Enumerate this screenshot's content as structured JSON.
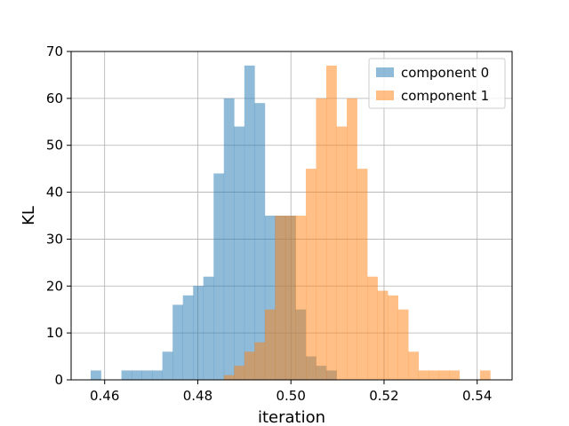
{
  "chart_data": {
    "type": "histogram",
    "title": "",
    "xlabel": "iteration",
    "ylabel": "KL",
    "xlim": [
      0.4528,
      0.5475
    ],
    "ylim": [
      0,
      70
    ],
    "xticks": [
      0.46,
      0.48,
      0.5,
      0.52,
      0.54
    ],
    "xtick_labels": [
      "0.46",
      "0.48",
      "0.50",
      "0.52",
      "0.54"
    ],
    "yticks": [
      0,
      10,
      20,
      30,
      40,
      50,
      60,
      70
    ],
    "ytick_labels": [
      "0",
      "10",
      "20",
      "30",
      "40",
      "50",
      "60",
      "70"
    ],
    "grid": true,
    "legend_position": "top-right",
    "series": [
      {
        "name": "component 0",
        "color": "#1f77b4",
        "bin_edges": [
          0.457,
          0.4592,
          0.4614,
          0.4636,
          0.4658,
          0.468,
          0.4702,
          0.4724,
          0.4746,
          0.4768,
          0.479,
          0.4812,
          0.4834,
          0.4856,
          0.4878,
          0.49,
          0.4922,
          0.4944,
          0.4966,
          0.4988,
          0.501,
          0.5032,
          0.5054,
          0.5076,
          0.5098,
          0.512,
          0.5142
        ],
        "counts": [
          2,
          0,
          0,
          2,
          2,
          2,
          2,
          6,
          16,
          18,
          20,
          22,
          44,
          60,
          54,
          67,
          59,
          35,
          35,
          35,
          15,
          5,
          3,
          2,
          0,
          0
        ]
      },
      {
        "name": "component 1",
        "color": "#ff7f0e",
        "bin_edges": [
          0.4856,
          0.4878,
          0.49,
          0.4922,
          0.4944,
          0.4966,
          0.4988,
          0.501,
          0.5032,
          0.5054,
          0.5076,
          0.5098,
          0.512,
          0.5142,
          0.5164,
          0.5186,
          0.5208,
          0.523,
          0.5252,
          0.5274,
          0.5296,
          0.5318,
          0.534,
          0.5362,
          0.5384,
          0.5406,
          0.5428
        ],
        "counts": [
          1,
          3,
          6,
          8,
          15,
          35,
          35,
          35,
          45,
          60,
          67,
          54,
          60,
          45,
          22,
          19,
          18,
          15,
          6,
          2,
          2,
          2,
          2,
          0,
          0,
          2
        ]
      }
    ]
  }
}
